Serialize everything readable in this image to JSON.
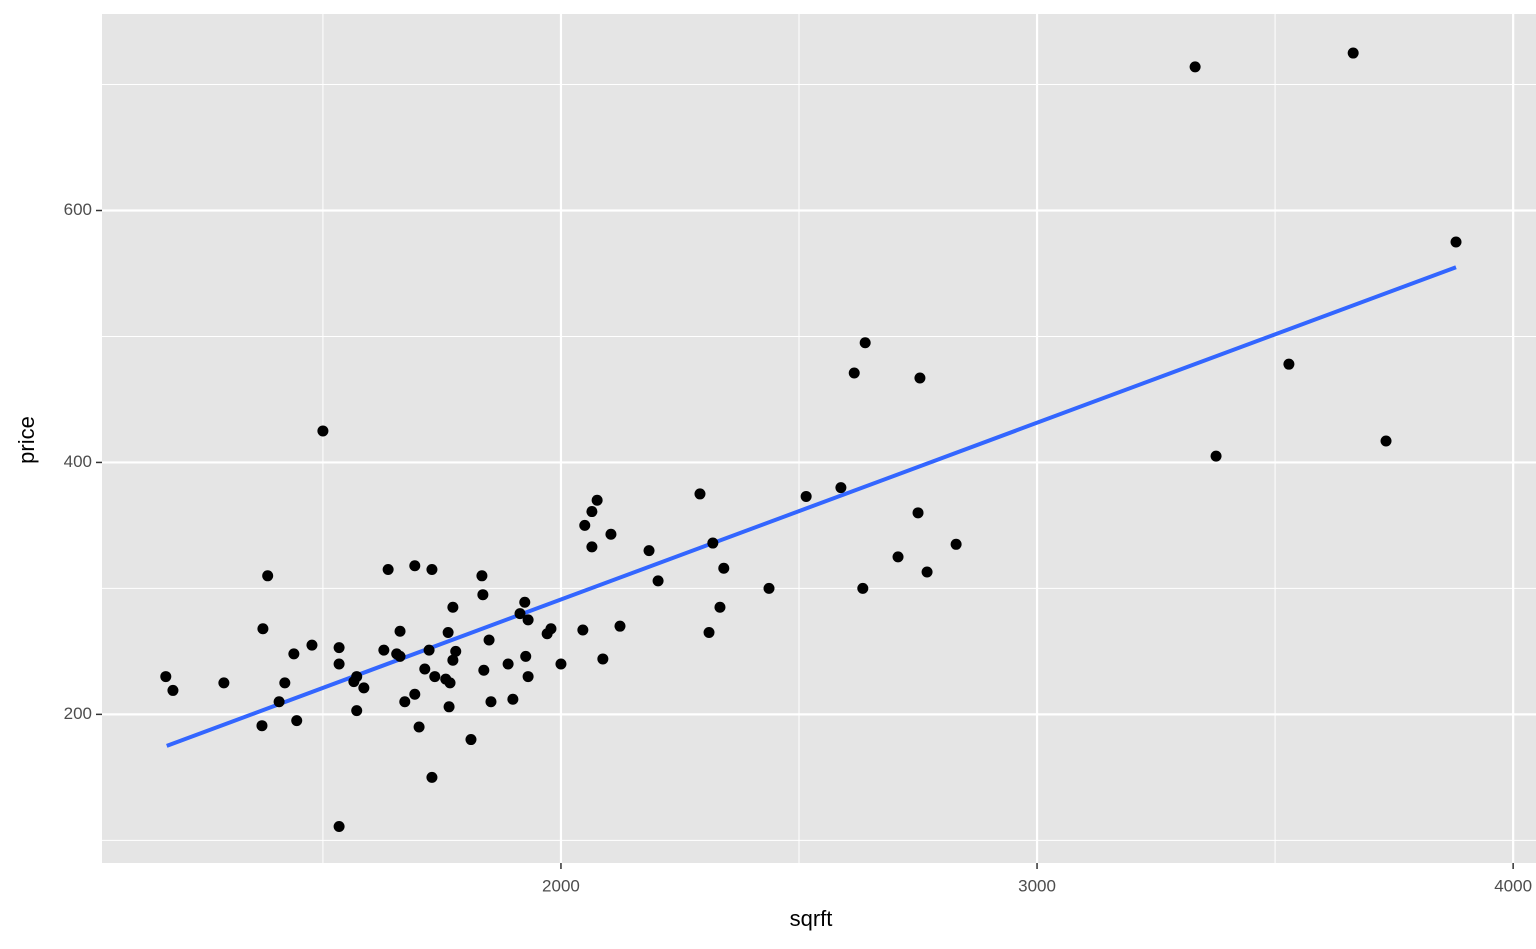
{
  "chart_data": {
    "type": "scatter",
    "x_label": "sqrft",
    "y_label": "price",
    "x": [
      1170,
      1185,
      1292,
      1372,
      1374,
      1384,
      1408,
      1420,
      1439,
      1445,
      1477,
      1500,
      1534,
      1534,
      1534,
      1565,
      1571,
      1571,
      1586,
      1628,
      1637,
      1655,
      1662,
      1662,
      1672,
      1693,
      1693,
      1702,
      1714,
      1723,
      1729,
      1729,
      1735,
      1758,
      1763,
      1765,
      1767,
      1773,
      1773,
      1779,
      1811,
      1834,
      1836,
      1838,
      1849,
      1853,
      1889,
      1899,
      1914,
      1924,
      1926,
      1931,
      1931,
      1971,
      1979,
      2000,
      2046,
      2050,
      2065,
      2065,
      2076,
      2088,
      2105,
      2124,
      2185,
      2204,
      2292,
      2311,
      2319,
      2334,
      2342,
      2437,
      2515,
      2588,
      2616,
      2634,
      2639,
      2708,
      2750,
      2754,
      2769,
      2830,
      3332,
      3376,
      3529,
      3664,
      3733,
      3880
    ],
    "values": [
      230,
      219,
      225,
      191,
      268,
      310,
      210,
      225,
      248,
      195,
      255,
      425,
      253,
      240,
      111,
      226,
      230,
      203,
      221,
      251,
      315,
      248,
      266,
      246,
      210,
      318,
      216,
      190,
      236,
      251,
      315,
      150,
      230,
      228,
      265,
      206,
      225,
      285,
      243,
      250,
      180,
      310,
      295,
      235,
      259,
      210,
      240,
      212,
      280,
      289,
      246,
      275,
      230,
      264,
      268,
      240,
      267,
      350,
      361,
      333,
      370,
      244,
      343,
      270,
      330,
      306,
      375,
      265,
      336,
      285,
      316,
      300,
      373,
      380,
      471,
      300,
      495,
      325,
      360,
      467,
      313,
      335,
      714,
      405,
      478,
      725,
      417,
      575
    ],
    "color": "#000000",
    "fit": {
      "x": [
        1172,
        3880
      ],
      "values": [
        175,
        555
      ],
      "color": "#3366ff"
    },
    "xlim": [
      1036,
      4048
    ],
    "ylim": [
      82,
      756
    ],
    "xticks": [
      2000,
      3000,
      4000
    ],
    "yticks": [
      200,
      400,
      600
    ],
    "xminor": [
      1500,
      2500,
      3500
    ],
    "yminor": [
      100,
      300,
      500,
      700
    ],
    "grid": true,
    "panel_color": "#e5e5e5"
  }
}
